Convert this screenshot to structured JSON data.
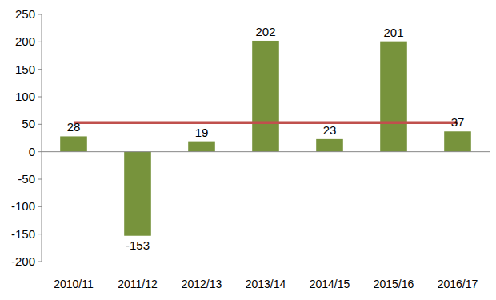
{
  "chart_data": {
    "type": "bar",
    "categories": [
      "2010/11",
      "2011/12",
      "2012/13",
      "2013/14",
      "2014/15",
      "2015/16",
      "2016/17"
    ],
    "series": [
      {
        "type": "bar",
        "color": "#77933c",
        "data_labels": true,
        "values": [
          28,
          -153,
          19,
          202,
          23,
          201,
          37
        ]
      },
      {
        "type": "line",
        "color": "#c0504d",
        "values": [
          53,
          53,
          53,
          53,
          53,
          53,
          53
        ]
      }
    ],
    "ylim": [
      -200,
      250
    ],
    "yticks": [
      -200,
      -150,
      -100,
      -50,
      0,
      50,
      100,
      150,
      200,
      250
    ],
    "grid": false
  }
}
